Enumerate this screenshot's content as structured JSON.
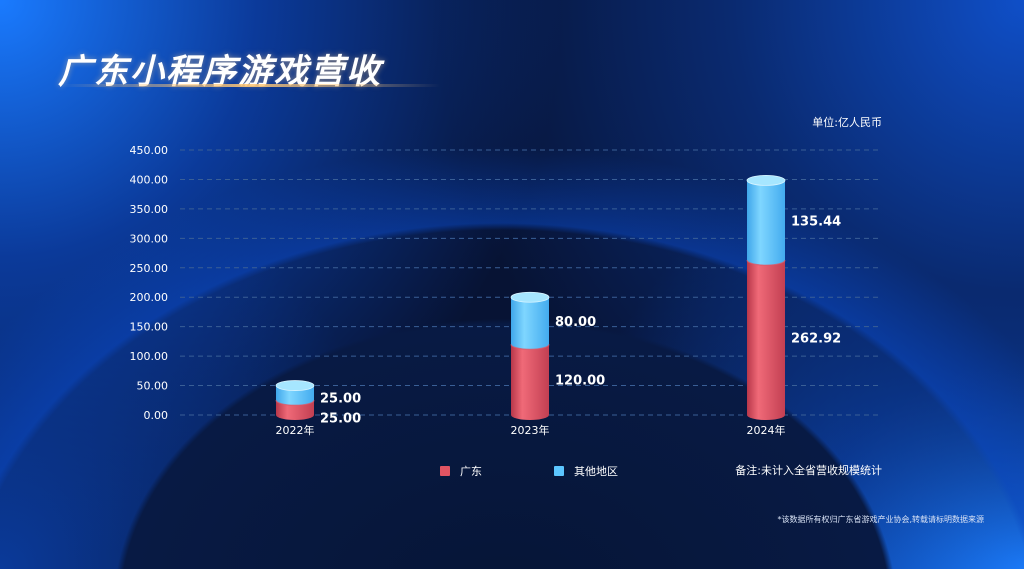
{
  "title": "广东小程序游戏营收",
  "unit_label": "单位:亿人民币",
  "note": "备注:未计入全省营收规模统计",
  "copyright": "*该数据所有权归广东省游戏产业协会,转载请标明数据来源",
  "colors": {
    "guangdong": "#e05463",
    "other": "#5cc6ff"
  },
  "chart_data": {
    "type": "bar",
    "stacked": true,
    "categories": [
      "2022年",
      "2023年",
      "2024年"
    ],
    "series": [
      {
        "name": "广东",
        "values": [
          25.0,
          120.0,
          262.92
        ],
        "labels": [
          "25.00",
          "120.00",
          "262.92"
        ]
      },
      {
        "name": "其他地区",
        "values": [
          25.0,
          80.0,
          135.44
        ],
        "labels": [
          "25.00",
          "80.00",
          "135.44"
        ]
      }
    ],
    "ylim": [
      0,
      450
    ],
    "yticks": [
      "0.00",
      "50.00",
      "100.00",
      "150.00",
      "200.00",
      "250.00",
      "300.00",
      "350.00",
      "400.00",
      "450.00"
    ],
    "grid": true,
    "legend_position": "bottom"
  }
}
